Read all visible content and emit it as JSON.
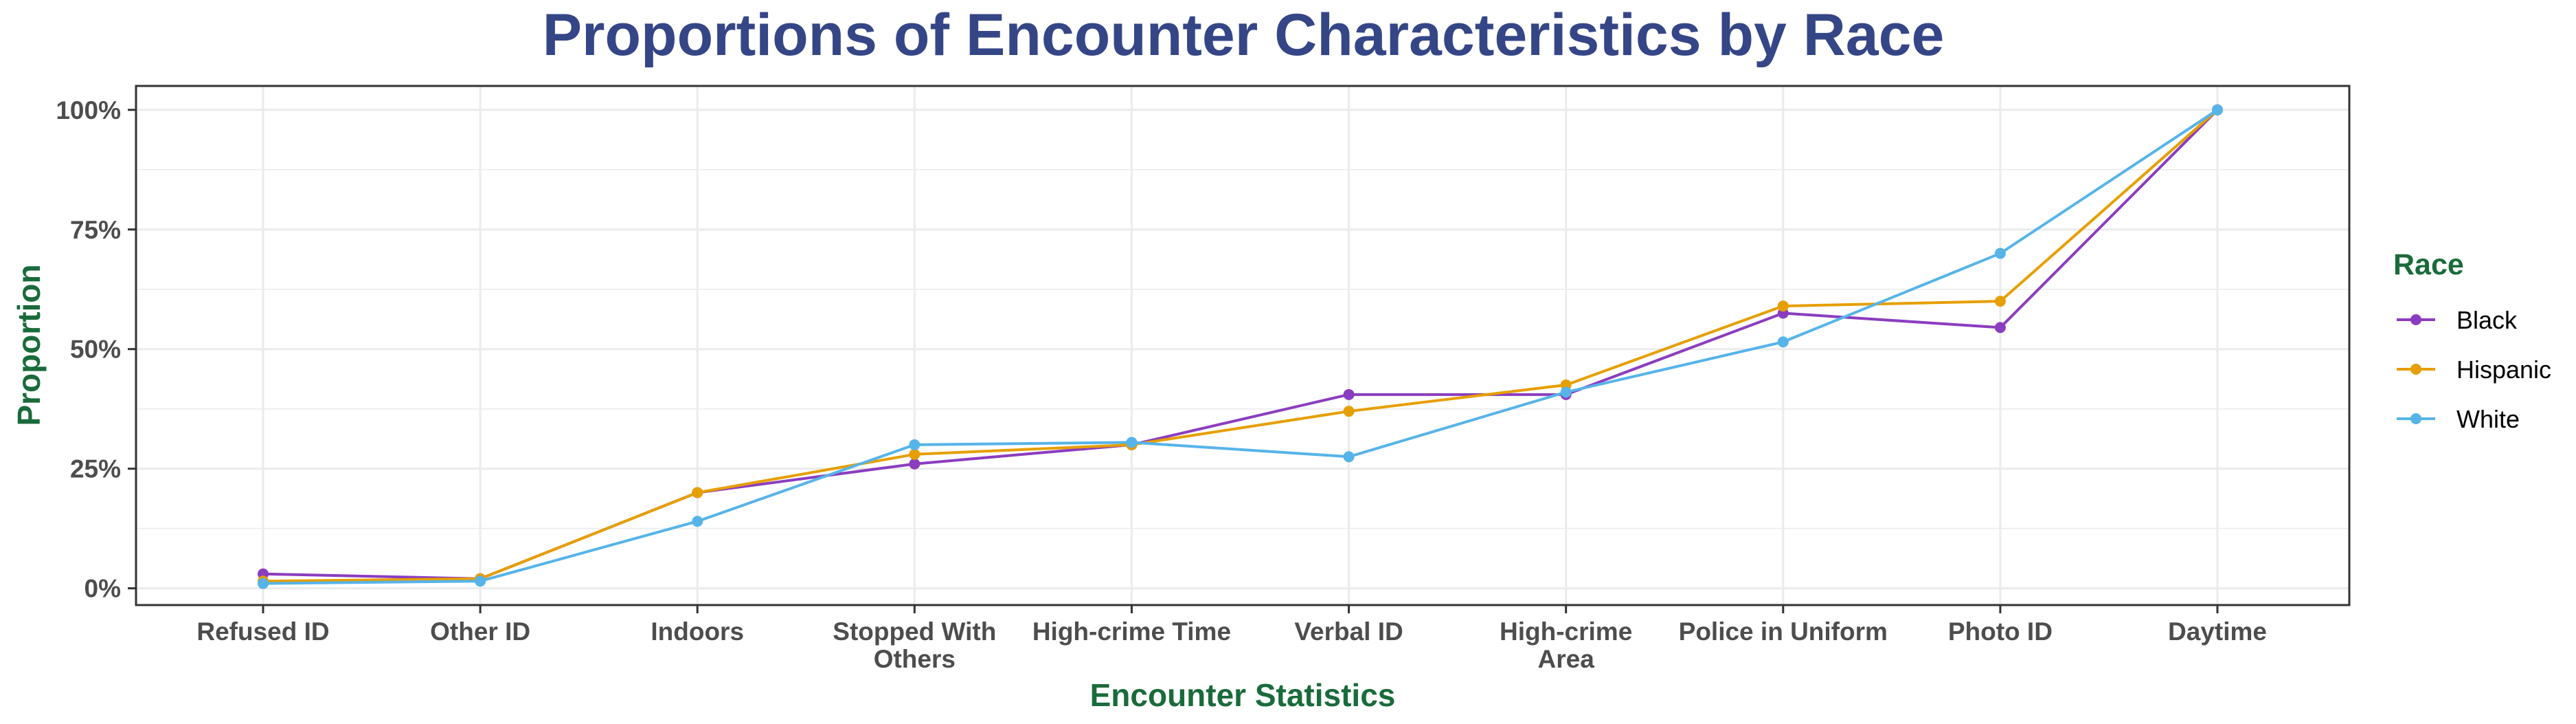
{
  "chart_data": {
    "type": "line",
    "title": "Proportions of Encounter Characteristics by Race",
    "xlabel": "Encounter Statistics",
    "ylabel": "Proportion",
    "categories": [
      [
        "Refused ID"
      ],
      [
        "Other ID"
      ],
      [
        "Indoors"
      ],
      [
        "Stopped With",
        "Others"
      ],
      [
        "High-crime Time"
      ],
      [
        "Verbal ID"
      ],
      [
        "High-crime",
        "Area"
      ],
      [
        "Police in Uniform"
      ],
      [
        "Photo ID"
      ],
      [
        "Daytime"
      ]
    ],
    "yticks": [
      0,
      0.25,
      0.5,
      0.75,
      1.0
    ],
    "ytick_labels": [
      "0%",
      "25%",
      "50%",
      "75%",
      "100%"
    ],
    "ylim": [
      -0.035,
      1.05
    ],
    "grid": true,
    "legend": {
      "title": "Race",
      "position": "right"
    },
    "series": [
      {
        "name": "Black",
        "color": "#8B3DBF",
        "values": [
          0.03,
          0.02,
          0.2,
          0.26,
          0.3,
          0.405,
          0.405,
          0.575,
          0.545,
          1.0
        ]
      },
      {
        "name": "Hispanic",
        "color": "#E69F00",
        "values": [
          0.015,
          0.02,
          0.2,
          0.28,
          0.3,
          0.37,
          0.425,
          0.59,
          0.6,
          1.0
        ]
      },
      {
        "name": "White",
        "color": "#56B4E9",
        "values": [
          0.01,
          0.015,
          0.14,
          0.3,
          0.305,
          0.275,
          0.41,
          0.515,
          0.7,
          1.0
        ]
      }
    ]
  },
  "colors": {
    "title": "#354687",
    "axis_title": "#1A6B3A",
    "legend_title": "#1A6B3A",
    "grid": "#ebebeb",
    "panel_border": "#333333"
  }
}
